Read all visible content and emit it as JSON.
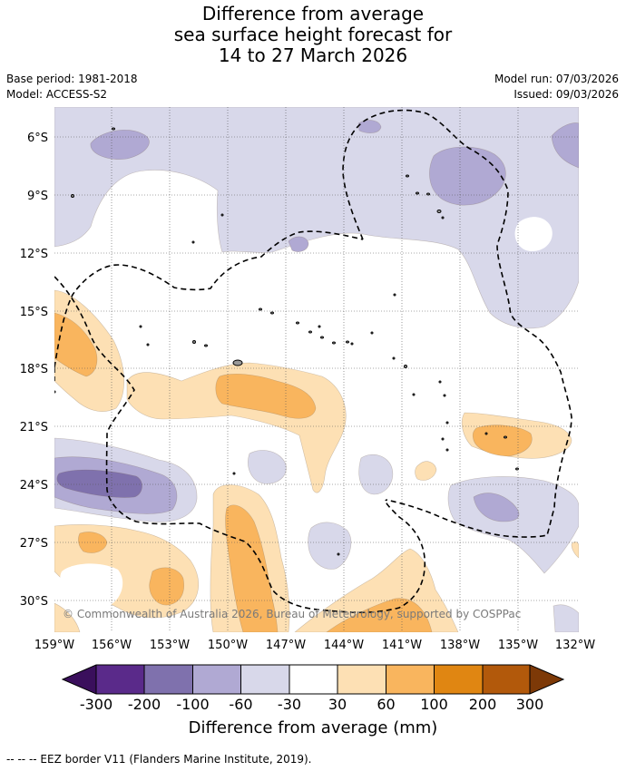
{
  "title": {
    "line1": "Difference from average",
    "line2": "sea surface height forecast for",
    "line3": "14 to 27 March 2026"
  },
  "meta": {
    "base_period": "Base period: 1981-2018",
    "model": "Model: ACCESS-S2",
    "model_run": "Model run: 07/03/2026",
    "issued": "Issued: 09/03/2026"
  },
  "map": {
    "copyright": "© Commonwealth of Australia 2026, Bureau of Meteorology, supported by COSPPac",
    "lat_labels": [
      "6°S",
      "9°S",
      "12°S",
      "15°S",
      "18°S",
      "21°S",
      "24°S",
      "27°S",
      "30°S"
    ],
    "lon_labels": [
      "159°W",
      "156°W",
      "153°W",
      "150°W",
      "147°W",
      "144°W",
      "141°W",
      "138°W",
      "135°W",
      "132°W"
    ],
    "colors": {
      "neg300": "#3a0f5c",
      "neg200": "#5a2a8a",
      "neg100": "#7f71ad",
      "neg60": "#b0a9d3",
      "neg30": "#d8d8ea",
      "neutral": "#ffffff",
      "pos30": "#fde0b4",
      "pos60": "#f9b55e",
      "pos100": "#e08612",
      "pos200": "#b2590b",
      "pos300": "#7d3907"
    }
  },
  "colorbar": {
    "ticks": [
      "-300",
      "-200",
      "-100",
      "-60",
      "-30",
      "30",
      "60",
      "100",
      "200",
      "300"
    ],
    "label": "Difference from average (mm)"
  },
  "footer": {
    "legend_line": "--  --  -- EEZ border V11 (Flanders Marine Institute, 2019)."
  }
}
